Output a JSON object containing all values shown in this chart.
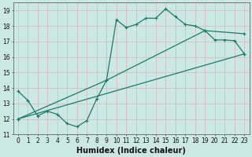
{
  "line1_x": [
    0,
    1,
    2,
    3,
    4,
    5,
    6,
    7,
    8,
    9,
    10,
    11,
    12,
    13,
    14,
    15,
    16,
    17,
    18,
    19,
    20,
    21,
    22,
    23
  ],
  "line1_y": [
    13.8,
    13.2,
    12.2,
    12.5,
    12.3,
    11.7,
    11.5,
    11.9,
    13.3,
    14.5,
    18.4,
    17.9,
    18.1,
    18.5,
    18.5,
    19.1,
    18.6,
    18.1,
    18.0,
    17.7,
    17.1,
    17.1,
    17.05,
    16.2
  ],
  "line2_x": [
    0,
    23
  ],
  "line2_y": [
    12.0,
    16.2
  ],
  "line3_x": [
    0,
    9,
    19,
    23
  ],
  "line3_y": [
    12.0,
    14.5,
    17.7,
    17.5
  ],
  "line_color": "#1a7a6a",
  "bg_color": "#cce8e4",
  "grid_color": "#c0d8d5",
  "xlabel": "Humidex (Indice chaleur)",
  "xlim": [
    -0.5,
    23.5
  ],
  "ylim": [
    11,
    19.5
  ],
  "xticks": [
    0,
    1,
    2,
    3,
    4,
    5,
    6,
    7,
    8,
    9,
    10,
    11,
    12,
    13,
    14,
    15,
    16,
    17,
    18,
    19,
    20,
    21,
    22,
    23
  ],
  "yticks": [
    11,
    12,
    13,
    14,
    15,
    16,
    17,
    18,
    19
  ],
  "tick_fontsize": 5.5,
  "label_fontsize": 7.0
}
